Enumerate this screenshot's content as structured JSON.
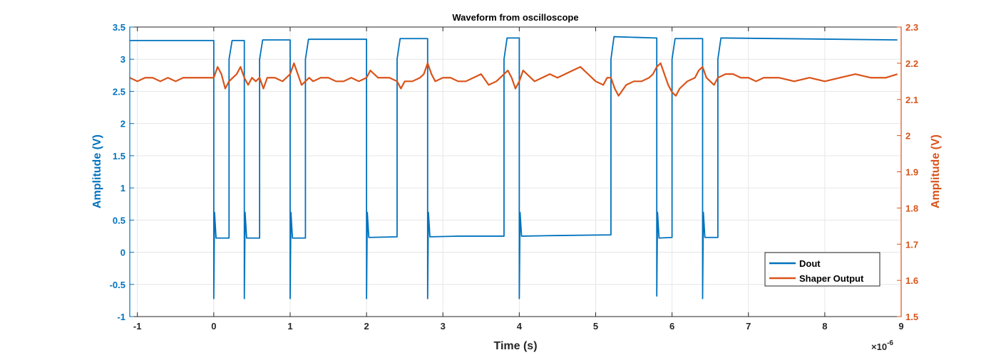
{
  "chart_data": {
    "type": "line",
    "title": "Waveform from oscilloscope",
    "xlabel": "Time (s)",
    "x_exponent": "×10",
    "x_exponent_power": "-6",
    "ylabel_left": "Amplitude (V)",
    "ylabel_right": "Amplitude (V)",
    "xlim": [
      -1.1,
      9
    ],
    "ylim_left": [
      -1,
      3.5
    ],
    "ylim_right": [
      1.5,
      2.3
    ],
    "x_ticks": [
      "-1",
      "0",
      "1",
      "2",
      "3",
      "4",
      "5",
      "6",
      "7",
      "8",
      "9"
    ],
    "y_ticks_left": [
      "-1",
      "-0.5",
      "0",
      "0.5",
      "1",
      "1.5",
      "2",
      "2.5",
      "3",
      "3.5"
    ],
    "y_ticks_right": [
      "1.5",
      "1.6",
      "1.7",
      "1.8",
      "1.9",
      "2",
      "2.1",
      "2.2",
      "2.3"
    ],
    "grid": true,
    "legend_position": "bottom-right",
    "colors": {
      "dout": "#0072BD",
      "shaper": "#D95319"
    },
    "series": [
      {
        "name": "Dout",
        "axis": "left",
        "x": [
          -1.1,
          -0.02,
          0.0,
          0.0,
          0.01,
          0.03,
          0.2,
          0.2,
          0.24,
          0.38,
          0.4,
          0.4,
          0.41,
          0.43,
          0.6,
          0.6,
          0.64,
          0.98,
          1.0,
          1.0,
          1.01,
          1.03,
          1.2,
          1.2,
          1.24,
          1.98,
          2.0,
          2.0,
          2.01,
          2.03,
          2.4,
          2.4,
          2.44,
          2.78,
          2.8,
          2.8,
          2.81,
          2.83,
          3.2,
          3.5,
          3.8,
          3.8,
          3.84,
          3.98,
          4.0,
          4.0,
          4.01,
          4.03,
          4.5,
          5.2,
          5.2,
          5.24,
          5.78,
          5.8,
          5.8,
          5.81,
          5.83,
          6.0,
          6.0,
          6.04,
          6.38,
          6.4,
          6.4,
          6.41,
          6.43,
          6.6,
          6.6,
          6.64,
          8.95
        ],
        "y": [
          3.29,
          3.29,
          3.29,
          -0.72,
          0.62,
          0.22,
          0.22,
          3.0,
          3.29,
          3.29,
          3.29,
          -0.72,
          0.62,
          0.22,
          0.22,
          3.0,
          3.3,
          3.3,
          3.3,
          -0.72,
          0.62,
          0.22,
          0.22,
          3.0,
          3.31,
          3.31,
          3.31,
          -0.72,
          0.62,
          0.23,
          0.24,
          3.0,
          3.32,
          3.32,
          3.32,
          -0.72,
          0.62,
          0.24,
          0.25,
          0.25,
          0.25,
          3.0,
          3.33,
          3.33,
          3.33,
          -0.72,
          0.62,
          0.25,
          0.26,
          0.27,
          3.0,
          3.35,
          3.33,
          3.33,
          -0.68,
          0.62,
          0.22,
          0.23,
          3.0,
          3.32,
          3.32,
          3.32,
          -0.72,
          0.62,
          0.23,
          0.23,
          3.0,
          3.33,
          3.3
        ]
      },
      {
        "name": "Shaper Output",
        "axis": "right",
        "x": [
          -1.1,
          -1.0,
          -0.9,
          -0.8,
          -0.7,
          -0.6,
          -0.5,
          -0.4,
          -0.3,
          -0.2,
          -0.1,
          0.0,
          0.05,
          0.1,
          0.15,
          0.2,
          0.25,
          0.3,
          0.35,
          0.4,
          0.45,
          0.5,
          0.55,
          0.6,
          0.65,
          0.7,
          0.8,
          0.9,
          1.0,
          1.05,
          1.1,
          1.15,
          1.2,
          1.25,
          1.3,
          1.4,
          1.5,
          1.6,
          1.7,
          1.8,
          1.9,
          2.0,
          2.05,
          2.1,
          2.15,
          2.2,
          2.3,
          2.4,
          2.45,
          2.5,
          2.6,
          2.7,
          2.75,
          2.8,
          2.85,
          2.9,
          3.0,
          3.1,
          3.2,
          3.3,
          3.4,
          3.5,
          3.6,
          3.7,
          3.8,
          3.85,
          3.9,
          3.95,
          4.0,
          4.05,
          4.1,
          4.2,
          4.3,
          4.4,
          4.5,
          4.6,
          4.7,
          4.8,
          4.9,
          5.0,
          5.1,
          5.15,
          5.2,
          5.25,
          5.3,
          5.4,
          5.5,
          5.6,
          5.7,
          5.75,
          5.8,
          5.85,
          5.9,
          5.95,
          6.0,
          6.05,
          6.1,
          6.2,
          6.3,
          6.35,
          6.4,
          6.45,
          6.5,
          6.55,
          6.6,
          6.7,
          6.8,
          6.9,
          7.0,
          7.1,
          7.2,
          7.4,
          7.6,
          7.8,
          8.0,
          8.2,
          8.4,
          8.6,
          8.8,
          8.95
        ],
        "y": [
          2.16,
          2.15,
          2.16,
          2.16,
          2.15,
          2.16,
          2.15,
          2.16,
          2.16,
          2.16,
          2.16,
          2.16,
          2.19,
          2.17,
          2.13,
          2.15,
          2.16,
          2.17,
          2.19,
          2.16,
          2.14,
          2.16,
          2.15,
          2.16,
          2.13,
          2.16,
          2.16,
          2.15,
          2.17,
          2.2,
          2.17,
          2.14,
          2.15,
          2.16,
          2.15,
          2.16,
          2.16,
          2.15,
          2.15,
          2.16,
          2.15,
          2.16,
          2.18,
          2.17,
          2.16,
          2.16,
          2.16,
          2.15,
          2.13,
          2.15,
          2.15,
          2.16,
          2.17,
          2.2,
          2.17,
          2.15,
          2.16,
          2.16,
          2.15,
          2.15,
          2.16,
          2.17,
          2.14,
          2.15,
          2.17,
          2.18,
          2.16,
          2.13,
          2.15,
          2.18,
          2.17,
          2.15,
          2.16,
          2.17,
          2.16,
          2.17,
          2.18,
          2.19,
          2.17,
          2.15,
          2.14,
          2.16,
          2.16,
          2.13,
          2.11,
          2.14,
          2.15,
          2.15,
          2.16,
          2.17,
          2.19,
          2.2,
          2.17,
          2.14,
          2.12,
          2.11,
          2.13,
          2.15,
          2.16,
          2.18,
          2.19,
          2.16,
          2.15,
          2.14,
          2.16,
          2.17,
          2.17,
          2.16,
          2.16,
          2.15,
          2.16,
          2.16,
          2.15,
          2.16,
          2.15,
          2.16,
          2.17,
          2.16,
          2.16,
          2.17
        ]
      }
    ]
  }
}
